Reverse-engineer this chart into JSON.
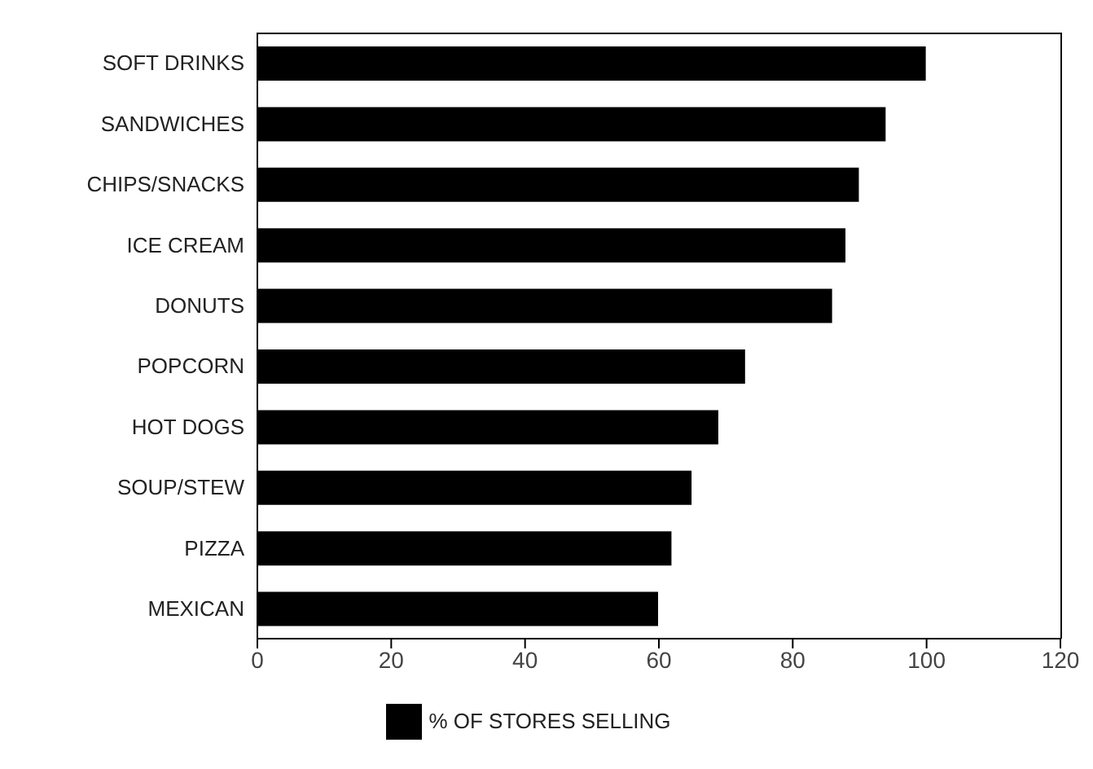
{
  "chart_data": {
    "type": "bar",
    "orientation": "horizontal",
    "categories": [
      "SOFT DRINKS",
      "SANDWICHES",
      "CHIPS/SNACKS",
      "ICE CREAM",
      "DONUTS",
      "POPCORN",
      "HOT DOGS",
      "SOUP/STEW",
      "PIZZA",
      "MEXICAN"
    ],
    "series": [
      {
        "name": "% OF STORES SELLING",
        "color": "#000000",
        "values": [
          100,
          94,
          90,
          88,
          86,
          73,
          69,
          65,
          62,
          60
        ]
      }
    ],
    "xlim": [
      0,
      120
    ],
    "xticks": [
      0,
      20,
      40,
      60,
      80,
      100,
      120
    ],
    "grid": false,
    "legend": "bottom"
  }
}
